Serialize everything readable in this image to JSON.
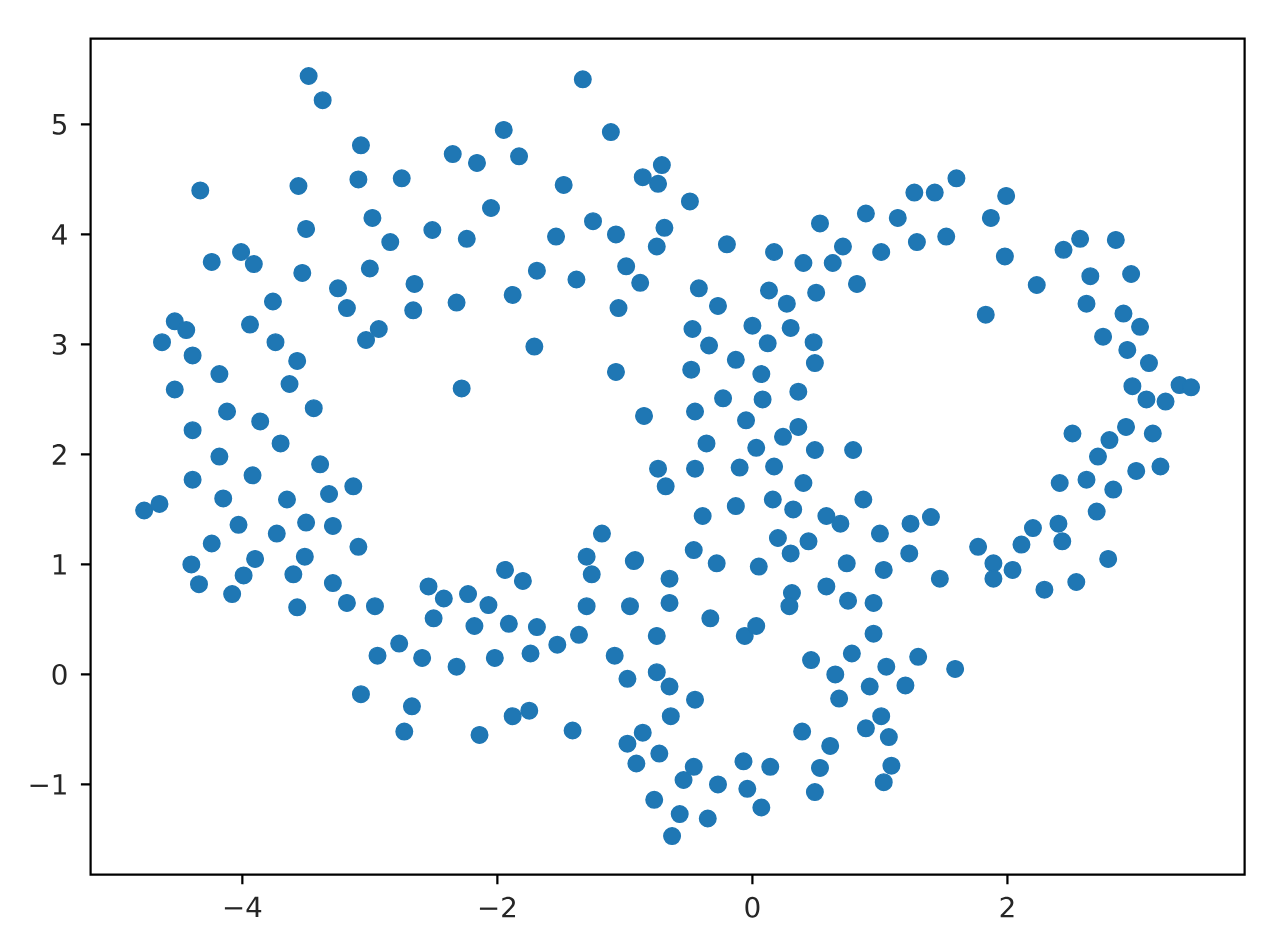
{
  "chart_data": {
    "type": "scatter",
    "color": "#1f77b4",
    "marker": "circle",
    "xlim": [
      -5.19,
      3.86
    ],
    "ylim": [
      -1.82,
      5.78
    ],
    "xticks": [
      {
        "value": -4,
        "label": "−4"
      },
      {
        "value": -2,
        "label": "−2"
      },
      0,
      2
    ],
    "yticks": [
      {
        "value": -1,
        "label": "−1"
      },
      0,
      1,
      2,
      3,
      4,
      5
    ],
    "x": [
      -3.48,
      -3.37,
      -4.33,
      -1.33,
      -1.11,
      -1.95,
      -3.07,
      -2.35,
      -1.83,
      -3.56,
      -2.75,
      -1.48,
      -2.05,
      -2.98,
      -3.5,
      -2.51,
      -1.25,
      -0.86,
      -1.07,
      -1.54,
      -2.24,
      -2.84,
      -4.01,
      -4.24,
      -3.91,
      -3.53,
      -3.0,
      -1.69,
      -1.38,
      -0.99,
      -3.25,
      -2.65,
      -1.88,
      -3.76,
      -3.18,
      -2.32,
      -1.05,
      -4.53,
      -3.94,
      -2.93,
      -4.63,
      -3.03,
      -1.71,
      -3.74,
      -4.39,
      -3.57,
      -4.18,
      -1.07,
      -4.53,
      -3.63,
      -2.28,
      -4.12,
      -3.44,
      -0.85,
      -4.39,
      -3.86,
      -4.18,
      -3.7,
      -3.39,
      -4.44,
      -2.66,
      -3.09,
      -2.16,
      -4.77,
      -4.65,
      -4.39,
      -4.15,
      -3.92,
      -3.65,
      -4.03,
      -3.73,
      -3.5,
      -3.32,
      -3.29,
      -3.13,
      -4.24,
      -3.09,
      -4.4,
      -3.9,
      -3.51,
      -4.34,
      -3.99,
      -3.6,
      -4.08,
      -3.29,
      -3.57,
      -3.18,
      -2.96,
      -2.54,
      -2.42,
      -2.23,
      -1.94,
      -1.8,
      -2.07,
      -2.5,
      -2.18,
      -1.91,
      -1.69,
      -1.53,
      -1.36,
      -2.77,
      -2.59,
      -2.94,
      -2.32,
      -2.02,
      -1.74,
      -3.07,
      -2.67,
      -2.73,
      -2.14,
      -1.88,
      -1.75,
      -1.41,
      -1.3,
      -1.18,
      -1.26,
      -1.3,
      -1.08,
      -0.98,
      -0.98,
      -0.91,
      -0.77,
      -0.92,
      -0.71,
      -0.74,
      -0.49,
      -0.69,
      -0.75,
      -0.88,
      -0.2,
      -0.42,
      -0.27,
      0.13,
      0.27,
      -0.47,
      -0.34,
      0.0,
      0.3,
      0.12,
      0.48,
      0.49,
      -0.48,
      -0.13,
      0.07,
      -0.23,
      0.08,
      0.36,
      0.36,
      -0.45,
      -0.36,
      -0.05,
      0.03,
      0.24,
      0.49,
      0.79,
      -0.74,
      -0.45,
      0.17,
      0.53,
      0.71,
      0.4,
      0.63,
      0.5,
      0.82,
      0.89,
      1.14,
      1.01,
      1.29,
      1.27,
      1.43,
      1.6,
      1.52,
      1.87,
      1.99,
      1.83,
      1.98,
      2.23,
      2.44,
      2.57,
      2.85,
      2.65,
      2.97,
      2.62,
      2.91,
      2.75,
      3.04,
      2.94,
      3.11,
      2.98,
      3.09,
      3.35,
      3.44,
      3.24,
      2.93,
      3.14,
      2.8,
      2.51,
      2.71,
      3.2,
      2.41,
      2.62,
      2.83,
      3.01,
      2.7,
      2.4,
      2.2,
      2.43,
      2.11,
      1.77,
      1.89,
      2.04,
      1.89,
      2.29,
      2.54,
      2.79,
      1.47,
      1.59,
      1.24,
      1.4,
      1.23,
      1.0,
      0.87,
      0.58,
      0.69,
      0.44,
      0.3,
      0.74,
      1.03,
      0.31,
      0.58,
      0.29,
      0.75,
      0.95,
      0.95,
      0.78,
      0.46,
      0.65,
      1.05,
      1.3,
      0.92,
      1.2,
      0.68,
      1.01,
      0.39,
      0.89,
      1.07,
      0.61,
      0.53,
      1.09,
      1.03,
      0.49,
      -0.07,
      0.14,
      -0.04,
      0.07,
      -0.27,
      -0.35,
      -0.57,
      -0.63,
      -0.54,
      -0.46,
      -0.73,
      -0.86,
      -0.64,
      -0.45,
      -0.65,
      -0.75,
      -0.06,
      0.03,
      -0.33,
      -0.65,
      -0.96,
      -0.75,
      -0.93,
      -0.65,
      -0.46,
      -0.39,
      -0.28,
      -0.13,
      0.05,
      0.16,
      0.2,
      0.32,
      -0.68,
      -0.1,
      0.4,
      0.17
    ],
    "values": [
      5.44,
      5.22,
      4.4,
      5.41,
      4.93,
      4.95,
      4.81,
      4.73,
      4.71,
      4.44,
      4.51,
      4.45,
      4.24,
      4.15,
      4.05,
      4.04,
      4.12,
      4.52,
      4.0,
      3.98,
      3.96,
      3.93,
      3.84,
      3.75,
      3.73,
      3.65,
      3.69,
      3.67,
      3.59,
      3.71,
      3.51,
      3.55,
      3.45,
      3.39,
      3.33,
      3.38,
      3.33,
      3.21,
      3.18,
      3.14,
      3.02,
      3.04,
      2.98,
      3.02,
      2.9,
      2.85,
      2.73,
      2.75,
      2.59,
      2.64,
      2.6,
      2.39,
      2.42,
      2.35,
      2.22,
      2.3,
      1.98,
      2.1,
      1.91,
      3.13,
      3.31,
      4.5,
      4.65,
      1.49,
      1.55,
      1.77,
      1.6,
      1.81,
      1.59,
      1.36,
      1.28,
      1.38,
      1.64,
      1.35,
      1.71,
      1.19,
      1.16,
      1.0,
      1.05,
      1.07,
      0.82,
      0.9,
      0.91,
      0.73,
      0.83,
      0.61,
      0.65,
      0.62,
      0.8,
      0.69,
      0.73,
      0.95,
      0.85,
      0.63,
      0.51,
      0.44,
      0.46,
      0.43,
      0.27,
      0.36,
      0.28,
      0.15,
      0.17,
      0.07,
      0.15,
      0.19,
      -0.18,
      -0.29,
      -0.52,
      -0.55,
      -0.38,
      -0.33,
      -0.51,
      1.07,
      1.28,
      0.91,
      0.62,
      0.17,
      -0.04,
      -0.63,
      -0.81,
      -1.14,
      1.04,
      4.63,
      4.46,
      4.3,
      4.06,
      3.89,
      3.56,
      3.91,
      3.51,
      3.35,
      3.49,
      3.37,
      3.14,
      2.99,
      3.17,
      3.15,
      3.01,
      3.02,
      2.83,
      2.77,
      2.86,
      2.73,
      2.51,
      2.5,
      2.57,
      2.25,
      2.39,
      2.1,
      2.31,
      2.06,
      2.16,
      2.04,
      2.04,
      1.87,
      1.87,
      3.84,
      4.1,
      3.89,
      3.74,
      3.74,
      3.47,
      3.55,
      4.19,
      4.15,
      3.84,
      3.93,
      4.38,
      4.38,
      4.51,
      3.98,
      4.15,
      4.35,
      3.27,
      3.8,
      3.54,
      3.86,
      3.96,
      3.95,
      3.62,
      3.64,
      3.37,
      3.28,
      3.07,
      3.16,
      2.95,
      2.83,
      2.62,
      2.5,
      2.63,
      2.61,
      2.48,
      2.25,
      2.19,
      2.13,
      2.19,
      1.98,
      1.89,
      1.74,
      1.77,
      1.68,
      1.85,
      1.48,
      1.37,
      1.33,
      1.21,
      1.18,
      1.16,
      1.01,
      0.95,
      0.87,
      0.77,
      0.84,
      1.05,
      0.87,
      0.05,
      1.37,
      1.43,
      1.1,
      1.28,
      1.59,
      1.44,
      1.37,
      1.21,
      1.1,
      1.01,
      0.95,
      0.74,
      0.8,
      0.62,
      0.67,
      0.65,
      0.37,
      0.19,
      0.13,
      0.0,
      0.07,
      0.16,
      -0.11,
      -0.1,
      -0.22,
      -0.38,
      -0.52,
      -0.49,
      -0.57,
      -0.65,
      -0.85,
      -0.83,
      -0.98,
      -1.07,
      -0.79,
      -0.84,
      -1.04,
      -1.21,
      -1.0,
      -1.31,
      -1.27,
      -1.47,
      -0.96,
      -0.84,
      -0.72,
      -0.53,
      -0.38,
      -0.23,
      -0.11,
      0.02,
      0.35,
      0.44,
      0.51,
      0.65,
      0.62,
      0.35,
      1.03,
      0.87,
      1.13,
      1.44,
      1.01,
      1.53,
      0.98,
      1.59,
      1.24,
      1.5,
      1.71,
      1.88,
      1.74,
      1.89
    ]
  }
}
